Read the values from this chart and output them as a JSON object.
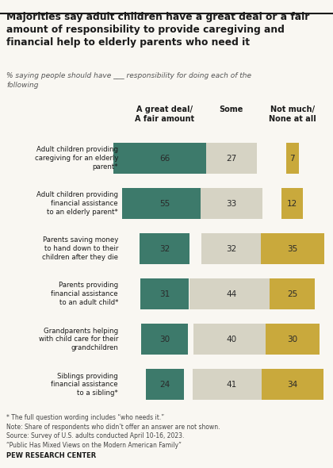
{
  "title": "Majorities say adult children have a great deal or a fair\namount of responsibility to provide caregiving and\nfinancial help to elderly parents who need it",
  "subtitle": "% saying people should have ___ responsibility for doing each of the\nfollowing",
  "categories": [
    "Adult children providing\ncaregiving for an elderly\nparent*",
    "Adult children providing\nfinancial assistance\nto an elderly parent*",
    "Parents saving money\nto hand down to their\nchildren after they die",
    "Parents providing\nfinancial assistance\nto an adult child*",
    "Grandparents helping\nwith child care for their\ngrandchildren",
    "Siblings providing\nfinancial assistance\nto a sibling*"
  ],
  "great_deal": [
    66,
    55,
    32,
    31,
    30,
    24
  ],
  "some": [
    27,
    33,
    32,
    44,
    40,
    41
  ],
  "not_much": [
    7,
    12,
    35,
    25,
    30,
    34
  ],
  "color_great": "#3d7a6b",
  "color_some": "#d6d3c4",
  "color_not_much": "#c9a93c",
  "col_headers": [
    "A great deal/\nA fair amount",
    "Some",
    "Not much/\nNone at all"
  ],
  "footnotes": "* The full question wording includes “who needs it.”\nNote: Share of respondents who didn’t offer an answer are not shown.\nSource: Survey of U.S. adults conducted April 10-16, 2023.\n“Public Has Mixed Views on the Modern American Family”",
  "footer": "PEW RESEARCH CENTER",
  "background_color": "#f9f7f2"
}
